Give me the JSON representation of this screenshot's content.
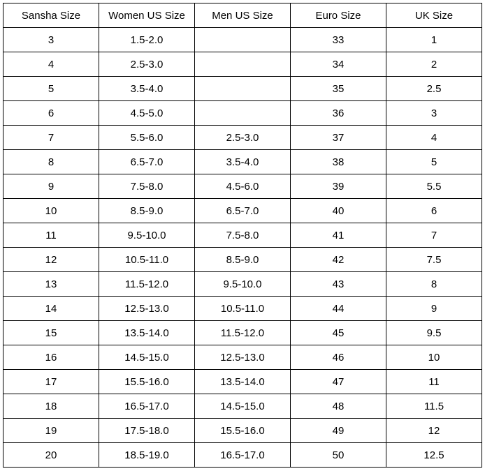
{
  "table": {
    "type": "table",
    "border_color": "#000000",
    "background_color": "#ffffff",
    "text_color": "#000000",
    "font_family": "Comic Sans MS",
    "font_size_pt": 11,
    "columns": [
      {
        "label": "Sansha Size",
        "width_pct": 20,
        "align": "center"
      },
      {
        "label": "Women US Size",
        "width_pct": 20,
        "align": "center"
      },
      {
        "label": "Men US Size",
        "width_pct": 20,
        "align": "center"
      },
      {
        "label": "Euro Size",
        "width_pct": 20,
        "align": "center"
      },
      {
        "label": "UK Size",
        "width_pct": 20,
        "align": "center"
      }
    ],
    "rows": [
      [
        "3",
        "1.5-2.0",
        "",
        "33",
        "1"
      ],
      [
        "4",
        "2.5-3.0",
        "",
        "34",
        "2"
      ],
      [
        "5",
        "3.5-4.0",
        "",
        "35",
        "2.5"
      ],
      [
        "6",
        "4.5-5.0",
        "",
        "36",
        "3"
      ],
      [
        "7",
        "5.5-6.0",
        "2.5-3.0",
        "37",
        "4"
      ],
      [
        "8",
        "6.5-7.0",
        "3.5-4.0",
        "38",
        "5"
      ],
      [
        "9",
        "7.5-8.0",
        "4.5-6.0",
        "39",
        "5.5"
      ],
      [
        "10",
        "8.5-9.0",
        "6.5-7.0",
        "40",
        "6"
      ],
      [
        "11",
        "9.5-10.0",
        "7.5-8.0",
        "41",
        "7"
      ],
      [
        "12",
        "10.5-11.0",
        "8.5-9.0",
        "42",
        "7.5"
      ],
      [
        "13",
        "11.5-12.0",
        "9.5-10.0",
        "43",
        "8"
      ],
      [
        "14",
        "12.5-13.0",
        "10.5-11.0",
        "44",
        "9"
      ],
      [
        "15",
        "13.5-14.0",
        "11.5-12.0",
        "45",
        "9.5"
      ],
      [
        "16",
        "14.5-15.0",
        "12.5-13.0",
        "46",
        "10"
      ],
      [
        "17",
        "15.5-16.0",
        "13.5-14.0",
        "47",
        "11"
      ],
      [
        "18",
        "16.5-17.0",
        "14.5-15.0",
        "48",
        "11.5"
      ],
      [
        "19",
        "17.5-18.0",
        "15.5-16.0",
        "49",
        "12"
      ],
      [
        "20",
        "18.5-19.0",
        "16.5-17.0",
        "50",
        "12.5"
      ]
    ]
  }
}
